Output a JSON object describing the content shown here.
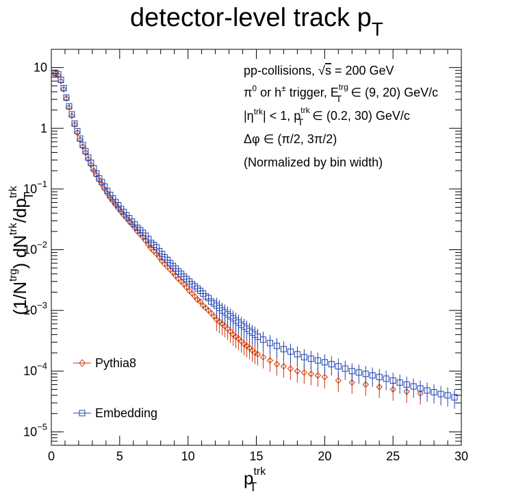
{
  "title": {
    "main": "detector-level track p",
    "sub": "T"
  },
  "annotations": [
    {
      "pre": "pp-collisions, ",
      "sqrt": "s",
      "post": " = 200 GeV"
    },
    {
      "p1": "π",
      "p1sup": "0",
      "p2": " or h",
      "p2sup": "±",
      "p3": " trigger, E",
      "p3sub": "T",
      "p3sup": "trg",
      "p4": " ∈ (9, 20) GeV/c"
    },
    {
      "p1": "|η",
      "p1sup": "trk",
      "p2": "| < 1, p",
      "p2sub": "T",
      "p2sup": "trk",
      "p3": " ∈ (0.2, 30) GeV/c"
    },
    {
      "text": "Δφ ∈ (π/2, 3π/2)"
    },
    {
      "text": "(Normalized by bin width)"
    }
  ],
  "axis": {
    "xlabel": {
      "main": "p",
      "sub": "T",
      "sup": "trk"
    },
    "ylabel": {
      "a": "(1/N",
      "asup": "trg",
      "b": ") dN",
      "bsup": "trk",
      "c": "/dp",
      "csub": "T",
      "csup": "trk"
    }
  },
  "legend": [
    {
      "label": "Pythia8",
      "color": "#cc3300",
      "marker": "diamond-open"
    },
    {
      "label": "Embedding",
      "color": "#1a3fb0",
      "marker": "square-open"
    }
  ],
  "chart_data": {
    "type": "scatter",
    "x_range": [
      0,
      30
    ],
    "y_range": [
      6e-06,
      20
    ],
    "y_scale": "log",
    "grid": false,
    "legend_position": "bottom-left",
    "x_ticks": [
      {
        "v": 0,
        "label": "0"
      },
      {
        "v": 5,
        "label": "5"
      },
      {
        "v": 10,
        "label": "10"
      },
      {
        "v": 15,
        "label": "15"
      },
      {
        "v": 20,
        "label": "20"
      },
      {
        "v": 25,
        "label": "25"
      },
      {
        "v": 30,
        "label": "30"
      }
    ],
    "y_ticks": [
      {
        "v": 10,
        "base": "10",
        "exp": ""
      },
      {
        "v": 1,
        "base": "1",
        "exp": ""
      },
      {
        "v": 0.1,
        "base": "10",
        "exp": "−1"
      },
      {
        "v": 0.01,
        "base": "10",
        "exp": "−2"
      },
      {
        "v": 0.001,
        "base": "10",
        "exp": "−3"
      },
      {
        "v": 0.0001,
        "base": "10",
        "exp": "−4"
      },
      {
        "v": 1e-05,
        "base": "10",
        "exp": "−5"
      }
    ],
    "series": [
      {
        "name": "Pythia8",
        "color": "#cc3300",
        "marker": "diamond-open",
        "points": [
          [
            0.3,
            8.0
          ],
          [
            0.5,
            7.5
          ],
          [
            0.7,
            6.0
          ],
          [
            0.9,
            4.4
          ],
          [
            1.1,
            3.1
          ],
          [
            1.3,
            2.2
          ],
          [
            1.5,
            1.6
          ],
          [
            1.7,
            1.15
          ],
          [
            1.9,
            0.85
          ],
          [
            2.1,
            0.65
          ],
          [
            2.3,
            0.5
          ],
          [
            2.5,
            0.4
          ],
          [
            2.7,
            0.31
          ],
          [
            2.9,
            0.25
          ],
          [
            3.1,
            0.2
          ],
          [
            3.3,
            0.17
          ],
          [
            3.5,
            0.14
          ],
          [
            3.7,
            0.12
          ],
          [
            3.9,
            0.1
          ],
          [
            4.1,
            0.085
          ],
          [
            4.3,
            0.072
          ],
          [
            4.5,
            0.063
          ],
          [
            4.7,
            0.055
          ],
          [
            4.9,
            0.048
          ],
          [
            5.1,
            0.042
          ],
          [
            5.3,
            0.037
          ],
          [
            5.5,
            0.033
          ],
          [
            5.7,
            0.029
          ],
          [
            5.9,
            0.026
          ],
          [
            6.1,
            0.023
          ],
          [
            6.3,
            0.02
          ],
          [
            6.5,
            0.018
          ],
          [
            6.7,
            0.016
          ],
          [
            6.9,
            0.014
          ],
          [
            7.1,
            0.012
          ],
          [
            7.3,
            0.0105
          ],
          [
            7.5,
            0.0095
          ],
          [
            7.7,
            0.0085
          ],
          [
            7.9,
            0.0075
          ],
          [
            8.1,
            0.0065
          ],
          [
            8.3,
            0.0058
          ],
          [
            8.5,
            0.0052
          ],
          [
            8.7,
            0.0047
          ],
          [
            8.9,
            0.0042
          ],
          [
            9.1,
            0.0037
          ],
          [
            9.3,
            0.0033
          ],
          [
            9.5,
            0.003
          ],
          [
            9.7,
            0.0027
          ],
          [
            9.9,
            0.0024
          ],
          [
            10.1,
            0.0021
          ],
          [
            10.3,
            0.0019
          ],
          [
            10.5,
            0.0017
          ],
          [
            10.7,
            0.0015
          ],
          [
            10.9,
            0.0014
          ],
          [
            11.1,
            0.0012
          ],
          [
            11.3,
            0.0011
          ],
          [
            11.5,
            0.001
          ],
          [
            11.7,
            0.0009
          ],
          [
            11.9,
            0.0008
          ],
          [
            12.1,
            0.0007
          ],
          [
            12.3,
            0.00065
          ],
          [
            12.5,
            0.0006
          ],
          [
            12.7,
            0.00055
          ],
          [
            12.9,
            0.0005
          ],
          [
            13.1,
            0.00045
          ],
          [
            13.3,
            0.0004
          ],
          [
            13.5,
            0.00037
          ],
          [
            13.7,
            0.00034
          ],
          [
            13.9,
            0.00031
          ],
          [
            14.1,
            0.00028
          ],
          [
            14.3,
            0.00026
          ],
          [
            14.5,
            0.00024
          ],
          [
            14.7,
            0.00022
          ],
          [
            14.9,
            0.0002
          ],
          [
            15.1,
            0.00019
          ],
          [
            15.5,
            0.00017
          ],
          [
            16.0,
            0.00015
          ],
          [
            16.5,
            0.00013
          ],
          [
            17.0,
            0.00012
          ],
          [
            17.5,
            0.00011
          ],
          [
            18.0,
            0.0001
          ],
          [
            18.5,
            9.5e-05
          ],
          [
            19.0,
            9e-05
          ],
          [
            19.5,
            8.5e-05
          ],
          [
            20.0,
            8e-05
          ],
          [
            21.0,
            7e-05
          ],
          [
            22.0,
            6.5e-05
          ],
          [
            23.0,
            6e-05
          ],
          [
            24.0,
            5.5e-05
          ],
          [
            25.0,
            5e-05
          ],
          [
            26.0,
            4.6e-05
          ],
          [
            27.0,
            4.3e-05
          ]
        ]
      },
      {
        "name": "Embedding",
        "color": "#1a3fb0",
        "marker": "square-open",
        "points": [
          [
            0.3,
            8.2
          ],
          [
            0.5,
            7.8
          ],
          [
            0.7,
            6.3
          ],
          [
            0.9,
            4.6
          ],
          [
            1.1,
            3.2
          ],
          [
            1.3,
            2.3
          ],
          [
            1.5,
            1.7
          ],
          [
            1.7,
            1.2
          ],
          [
            1.9,
            0.9
          ],
          [
            2.1,
            0.68
          ],
          [
            2.3,
            0.53
          ],
          [
            2.5,
            0.42
          ],
          [
            2.7,
            0.33
          ],
          [
            2.9,
            0.27
          ],
          [
            3.1,
            0.22
          ],
          [
            3.3,
            0.18
          ],
          [
            3.5,
            0.15
          ],
          [
            3.7,
            0.13
          ],
          [
            3.9,
            0.11
          ],
          [
            4.1,
            0.093
          ],
          [
            4.3,
            0.08
          ],
          [
            4.5,
            0.07
          ],
          [
            4.7,
            0.061
          ],
          [
            4.9,
            0.054
          ],
          [
            5.1,
            0.047
          ],
          [
            5.3,
            0.042
          ],
          [
            5.5,
            0.037
          ],
          [
            5.7,
            0.033
          ],
          [
            5.9,
            0.029
          ],
          [
            6.1,
            0.026
          ],
          [
            6.3,
            0.023
          ],
          [
            6.5,
            0.021
          ],
          [
            6.7,
            0.019
          ],
          [
            6.9,
            0.017
          ],
          [
            7.1,
            0.015
          ],
          [
            7.3,
            0.013
          ],
          [
            7.5,
            0.012
          ],
          [
            7.7,
            0.011
          ],
          [
            7.9,
            0.0095
          ],
          [
            8.1,
            0.0085
          ],
          [
            8.3,
            0.0075
          ],
          [
            8.5,
            0.0068
          ],
          [
            8.7,
            0.006
          ],
          [
            8.9,
            0.0054
          ],
          [
            9.1,
            0.0049
          ],
          [
            9.3,
            0.0044
          ],
          [
            9.5,
            0.004
          ],
          [
            9.7,
            0.0036
          ],
          [
            9.9,
            0.0033
          ],
          [
            10.1,
            0.003
          ],
          [
            10.3,
            0.0027
          ],
          [
            10.5,
            0.0025
          ],
          [
            10.7,
            0.0023
          ],
          [
            10.9,
            0.0021
          ],
          [
            11.1,
            0.0019
          ],
          [
            11.3,
            0.0017
          ],
          [
            11.5,
            0.0016
          ],
          [
            11.7,
            0.0014
          ],
          [
            11.9,
            0.0013
          ],
          [
            12.1,
            0.0012
          ],
          [
            12.3,
            0.0011
          ],
          [
            12.5,
            0.001
          ],
          [
            12.7,
            0.00093
          ],
          [
            12.9,
            0.00086
          ],
          [
            13.1,
            0.0008
          ],
          [
            13.3,
            0.00074
          ],
          [
            13.5,
            0.00068
          ],
          [
            13.7,
            0.00063
          ],
          [
            13.9,
            0.00058
          ],
          [
            14.1,
            0.00054
          ],
          [
            14.3,
            0.0005
          ],
          [
            14.5,
            0.00046
          ],
          [
            14.7,
            0.00043
          ],
          [
            14.9,
            0.0004
          ],
          [
            15.1,
            0.00037
          ],
          [
            15.5,
            0.00033
          ],
          [
            16.0,
            0.00029
          ],
          [
            16.5,
            0.00026
          ],
          [
            17.0,
            0.00023
          ],
          [
            17.5,
            0.00021
          ],
          [
            18.0,
            0.00019
          ],
          [
            18.5,
            0.00017
          ],
          [
            19.0,
            0.00016
          ],
          [
            19.5,
            0.00015
          ],
          [
            20.0,
            0.00014
          ],
          [
            20.5,
            0.00013
          ],
          [
            21.0,
            0.00012
          ],
          [
            21.5,
            0.00011
          ],
          [
            22.0,
            0.0001
          ],
          [
            22.5,
            9.5e-05
          ],
          [
            23.0,
            9e-05
          ],
          [
            23.5,
            8.5e-05
          ],
          [
            24.0,
            8e-05
          ],
          [
            24.5,
            7.5e-05
          ],
          [
            25.0,
            7e-05
          ],
          [
            25.5,
            6.5e-05
          ],
          [
            26.0,
            6e-05
          ],
          [
            26.5,
            5.6e-05
          ],
          [
            27.0,
            5.2e-05
          ],
          [
            27.5,
            4.8e-05
          ],
          [
            28.0,
            4.5e-05
          ],
          [
            28.5,
            4.2e-05
          ],
          [
            29.0,
            4e-05
          ],
          [
            29.5,
            3.7e-05
          ]
        ]
      }
    ]
  }
}
